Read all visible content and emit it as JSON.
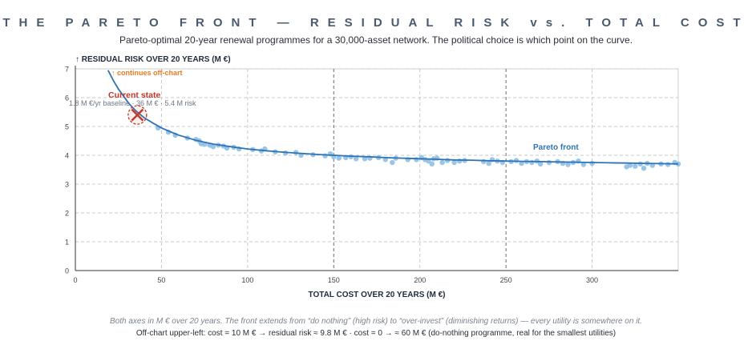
{
  "header": {
    "title": "THE PARETO FRONT — RESIDUAL RISK vs. TOTAL COST",
    "subtitle": "Pareto-optimal 20-year renewal programmes for a 30,000-asset network. The political choice is which point on the curve."
  },
  "footer": {
    "line1": "Both axes in M € over 20 years. The front extends from “do nothing” (high risk) to “over-invest” (diminishing returns) — every utility is somewhere on it.",
    "line2": "Off-chart upper-left: cost = 10 M € → residual risk ≈ 9.8 M € · cost = 0 → ≈ 60 M € (do-nothing programme, real for the smallest utilities)"
  },
  "chart_data": {
    "type": "scatter",
    "xlabel": "TOTAL COST OVER 20 YEARS (M €)",
    "ylabel": "↑ RESIDUAL RISK OVER 20 YEARS (M €)",
    "xlim": [
      0,
      350
    ],
    "ylim": [
      0,
      7
    ],
    "x_ticks": [
      0,
      50,
      100,
      150,
      200,
      250,
      300
    ],
    "y_ticks": [
      0,
      1,
      2,
      3,
      4,
      5,
      6,
      7
    ],
    "grid": true,
    "emphasized_x_gridlines": [
      150,
      250
    ],
    "colors": {
      "front_line": "#2e73b5",
      "points": "#8dbfe6",
      "marker": "#c0392b",
      "annotation": "#e67e22",
      "grid": "#c8c8c8",
      "axis": "#333333"
    },
    "series": [
      {
        "name": "Pareto front",
        "kind": "line",
        "x": [
          19,
          22,
          25,
          28,
          31,
          35,
          40,
          45,
          50,
          55,
          60,
          70,
          80,
          90,
          100,
          110,
          120,
          130,
          140,
          150,
          160,
          170,
          180,
          190,
          200,
          210,
          220,
          230,
          240,
          250,
          260,
          270,
          280,
          290,
          300,
          310,
          320,
          330,
          340,
          350
        ],
        "y": [
          6.95,
          6.6,
          6.3,
          6.05,
          5.8,
          5.55,
          5.3,
          5.12,
          4.95,
          4.82,
          4.7,
          4.52,
          4.39,
          4.3,
          4.22,
          4.16,
          4.11,
          4.07,
          4.03,
          4.0,
          3.97,
          3.95,
          3.92,
          3.9,
          3.88,
          3.86,
          3.84,
          3.83,
          3.81,
          3.8,
          3.79,
          3.78,
          3.77,
          3.76,
          3.75,
          3.74,
          3.73,
          3.72,
          3.71,
          3.7
        ]
      },
      {
        "kind": "scatter",
        "points": [
          [
            48,
            4.95
          ],
          [
            54,
            4.8
          ],
          [
            58,
            4.7
          ],
          [
            65,
            4.6
          ],
          [
            70,
            4.55
          ],
          [
            72,
            4.5
          ],
          [
            73,
            4.4
          ],
          [
            75,
            4.38
          ],
          [
            78,
            4.35
          ],
          [
            80,
            4.3
          ],
          [
            83,
            4.35
          ],
          [
            86,
            4.32
          ],
          [
            88,
            4.25
          ],
          [
            92,
            4.28
          ],
          [
            95,
            4.22
          ],
          [
            103,
            4.2
          ],
          [
            108,
            4.15
          ],
          [
            110,
            4.22
          ],
          [
            116,
            4.12
          ],
          [
            122,
            4.08
          ],
          [
            128,
            4.1
          ],
          [
            131,
            4.0
          ],
          [
            138,
            4.02
          ],
          [
            145,
            3.98
          ],
          [
            148,
            4.05
          ],
          [
            150,
            3.95
          ],
          [
            153,
            3.9
          ],
          [
            157,
            3.92
          ],
          [
            160,
            3.95
          ],
          [
            163,
            3.88
          ],
          [
            168,
            3.88
          ],
          [
            171,
            3.9
          ],
          [
            176,
            3.92
          ],
          [
            180,
            3.85
          ],
          [
            184,
            3.75
          ],
          [
            186,
            3.9
          ],
          [
            193,
            3.85
          ],
          [
            198,
            3.85
          ],
          [
            201,
            3.92
          ],
          [
            203,
            3.85
          ],
          [
            205,
            3.8
          ],
          [
            207,
            3.7
          ],
          [
            208,
            3.88
          ],
          [
            210,
            3.9
          ],
          [
            213,
            3.75
          ],
          [
            216,
            3.82
          ],
          [
            220,
            3.75
          ],
          [
            223,
            3.8
          ],
          [
            226,
            3.82
          ],
          [
            237,
            3.78
          ],
          [
            240,
            3.72
          ],
          [
            242,
            3.85
          ],
          [
            245,
            3.8
          ],
          [
            248,
            3.75
          ],
          [
            253,
            3.78
          ],
          [
            256,
            3.82
          ],
          [
            259,
            3.72
          ],
          [
            262,
            3.78
          ],
          [
            265,
            3.75
          ],
          [
            268,
            3.8
          ],
          [
            270,
            3.7
          ],
          [
            275,
            3.75
          ],
          [
            280,
            3.78
          ],
          [
            283,
            3.72
          ],
          [
            286,
            3.68
          ],
          [
            289,
            3.75
          ],
          [
            292,
            3.8
          ],
          [
            295,
            3.68
          ],
          [
            300,
            3.72
          ],
          [
            320,
            3.6
          ],
          [
            322,
            3.65
          ],
          [
            325,
            3.62
          ],
          [
            328,
            3.7
          ],
          [
            330,
            3.55
          ],
          [
            332,
            3.72
          ],
          [
            335,
            3.65
          ],
          [
            340,
            3.7
          ],
          [
            344,
            3.68
          ],
          [
            348,
            3.75
          ],
          [
            350,
            3.7
          ]
        ]
      },
      {
        "name": "Current state",
        "kind": "marker",
        "x": 36,
        "y": 5.4
      }
    ],
    "annotations": {
      "front_label": "Pareto front",
      "current_state_label": "Current state",
      "current_state_detail": "1.8 M €/yr baseline · 36 M € · 5.4 M risk",
      "offchart_note": "↑ continues off-chart"
    }
  }
}
